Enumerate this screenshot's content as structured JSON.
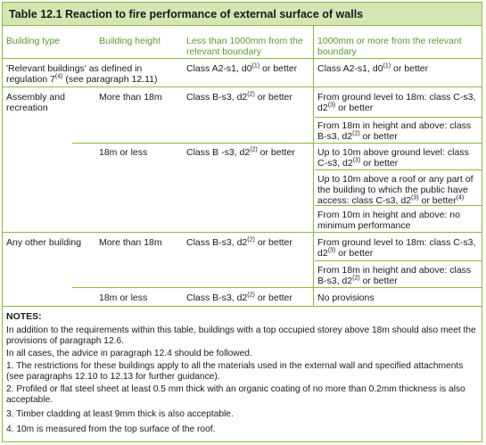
{
  "table": {
    "title": "Table 12.1   Reaction to fire performance of external surface of walls",
    "headers": {
      "building_type": "Building type",
      "building_height": "Building height",
      "less_than_1000": "Less than 1000mm from the relevant boundary",
      "more_than_1000": "1000mm or more from the relevant boundary"
    },
    "rows": {
      "relevant_buildings": {
        "type": "'Relevant buildings' as defined in regulation 7(4) (see paragraph 12.11)",
        "less": "Class A2-s1, d0(1) or better",
        "more": "Class A2-s1, d0(1) or better"
      },
      "assembly": {
        "type": "Assembly and recreation",
        "more_than_18m": {
          "height": "More than 18m",
          "less": "Class B-s3, d2(2) or better",
          "more_1": "From ground level to 18m: class C-s3, d2(3) or better",
          "more_2": "From 18m in height and above: class B-s3, d2(2) or better"
        },
        "18m_or_less": {
          "height": "18m or less",
          "less": "Class B -s3, d2(2) or better",
          "more_1": "Up to 10m above ground level: class C-s3, d2(3) or better",
          "more_2": "Up to 10m above a roof or any part of the building to which the public have access: class C-s3, d2(3) or better(4)",
          "more_3": "From 10m in height and above: no minimum performance"
        }
      },
      "other": {
        "type": "Any other building",
        "more_than_18m": {
          "height": "More than 18m",
          "less": "Class B-s3, d2(2) or better",
          "more_1": "From ground level to 18m: class C-s3, d2(3) or better",
          "more_2": "From 18m in height and above: class B-s3, d2(2) or better"
        },
        "18m_or_less": {
          "height": "18m or less",
          "less": "Class B-s3, d2(2) or better",
          "more": "No provisions"
        }
      }
    },
    "notes": {
      "title": "NOTES:",
      "intro_1": "In addition to the requirements within this table, buildings with a top occupied storey above 18m should also meet the provisions of paragraph 12.6.",
      "intro_2": "In all cases, the advice in paragraph 12.4 should be followed.",
      "n1": "1. The restrictions for these buildings apply to all the materials used in the external wall and specified attachments (see paragraphs 12.10 to 12.13 for further guidance).",
      "n2": "2. Profiled or flat steel sheet at least 0.5 mm thick with an organic coating of no more than 0.2mm thickness is also acceptable.",
      "n3": "3. Timber cladding at least 9mm thick is also acceptable.",
      "n4": "4. 10m is measured from the top surface of the roof."
    }
  }
}
